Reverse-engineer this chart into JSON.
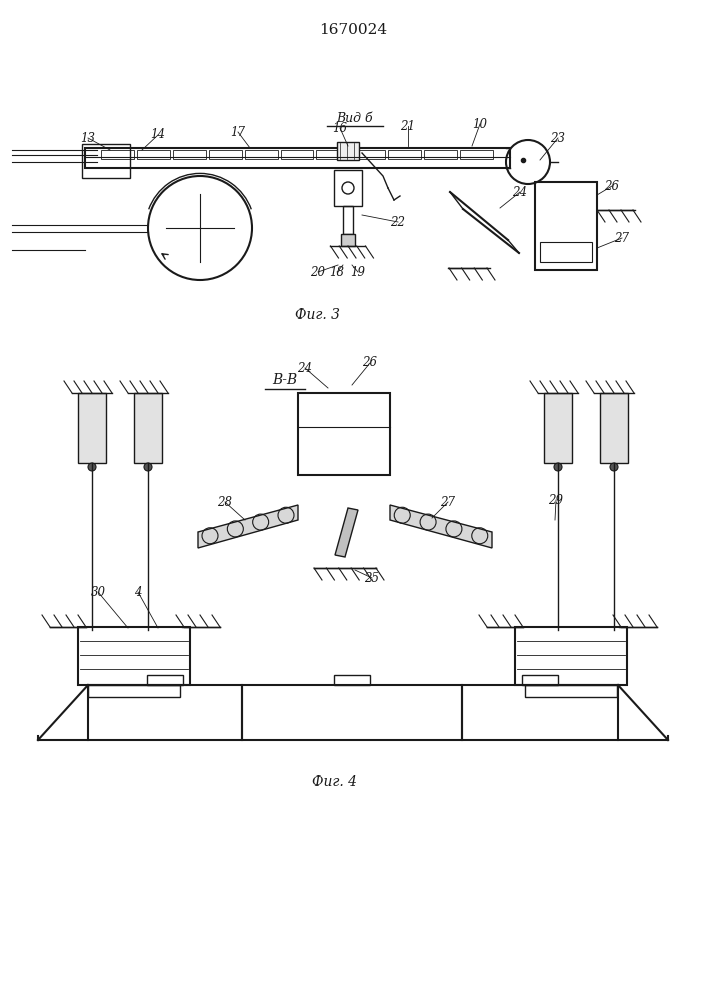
{
  "title": "1670024",
  "bg_color": "#ffffff",
  "line_color": "#1a1a1a",
  "fig3_caption": "Фиг. 3",
  "fig4_caption": "Фиг. 4",
  "vid_b": "Вид б",
  "vv": "В-В"
}
